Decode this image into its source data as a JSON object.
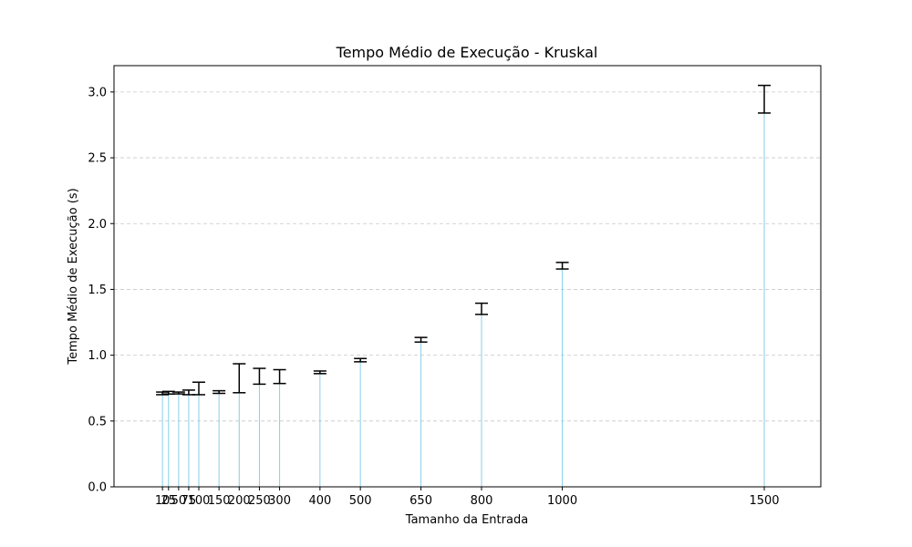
{
  "chart_data": {
    "type": "bar",
    "title": "Tempo Médio de Execução - Kruskal",
    "xlabel": "Tamanho da Entrada",
    "ylabel": "Tempo Médio de Execução (s)",
    "x": [
      10,
      25,
      50,
      75,
      100,
      150,
      200,
      250,
      300,
      400,
      500,
      650,
      800,
      1000,
      1500
    ],
    "x_tick_labels": [
      "10",
      "25",
      "50",
      "75",
      "100",
      "150",
      "200",
      "250",
      "300",
      "400",
      "500",
      "650",
      "800",
      "1000",
      "1500"
    ],
    "values": [
      0.71,
      0.715,
      0.713,
      0.712,
      0.712,
      0.72,
      0.715,
      0.8,
      0.805,
      0.865,
      0.96,
      1.12,
      1.35,
      1.68,
      2.945
    ],
    "error_low": [
      0.7,
      0.705,
      0.706,
      0.7,
      0.7,
      0.71,
      0.715,
      0.78,
      0.785,
      0.86,
      0.95,
      1.1,
      1.31,
      1.655,
      2.84
    ],
    "error_high": [
      0.72,
      0.725,
      0.72,
      0.735,
      0.795,
      0.73,
      0.935,
      0.9,
      0.89,
      0.88,
      0.975,
      1.135,
      1.395,
      1.705,
      3.05
    ],
    "xlim": [
      -110,
      1640
    ],
    "ylim": [
      0,
      3.2
    ],
    "y_ticks": [
      0.0,
      0.5,
      1.0,
      1.5,
      2.0,
      2.5,
      3.0
    ],
    "y_tick_labels": [
      "0.0",
      "0.5",
      "1.0",
      "1.5",
      "2.0",
      "2.5",
      "3.0"
    ],
    "grid": "y-dashed",
    "bar_color": "#87CEEB",
    "errorbar_color": "#000000",
    "grid_color": "#c8c8c8"
  }
}
